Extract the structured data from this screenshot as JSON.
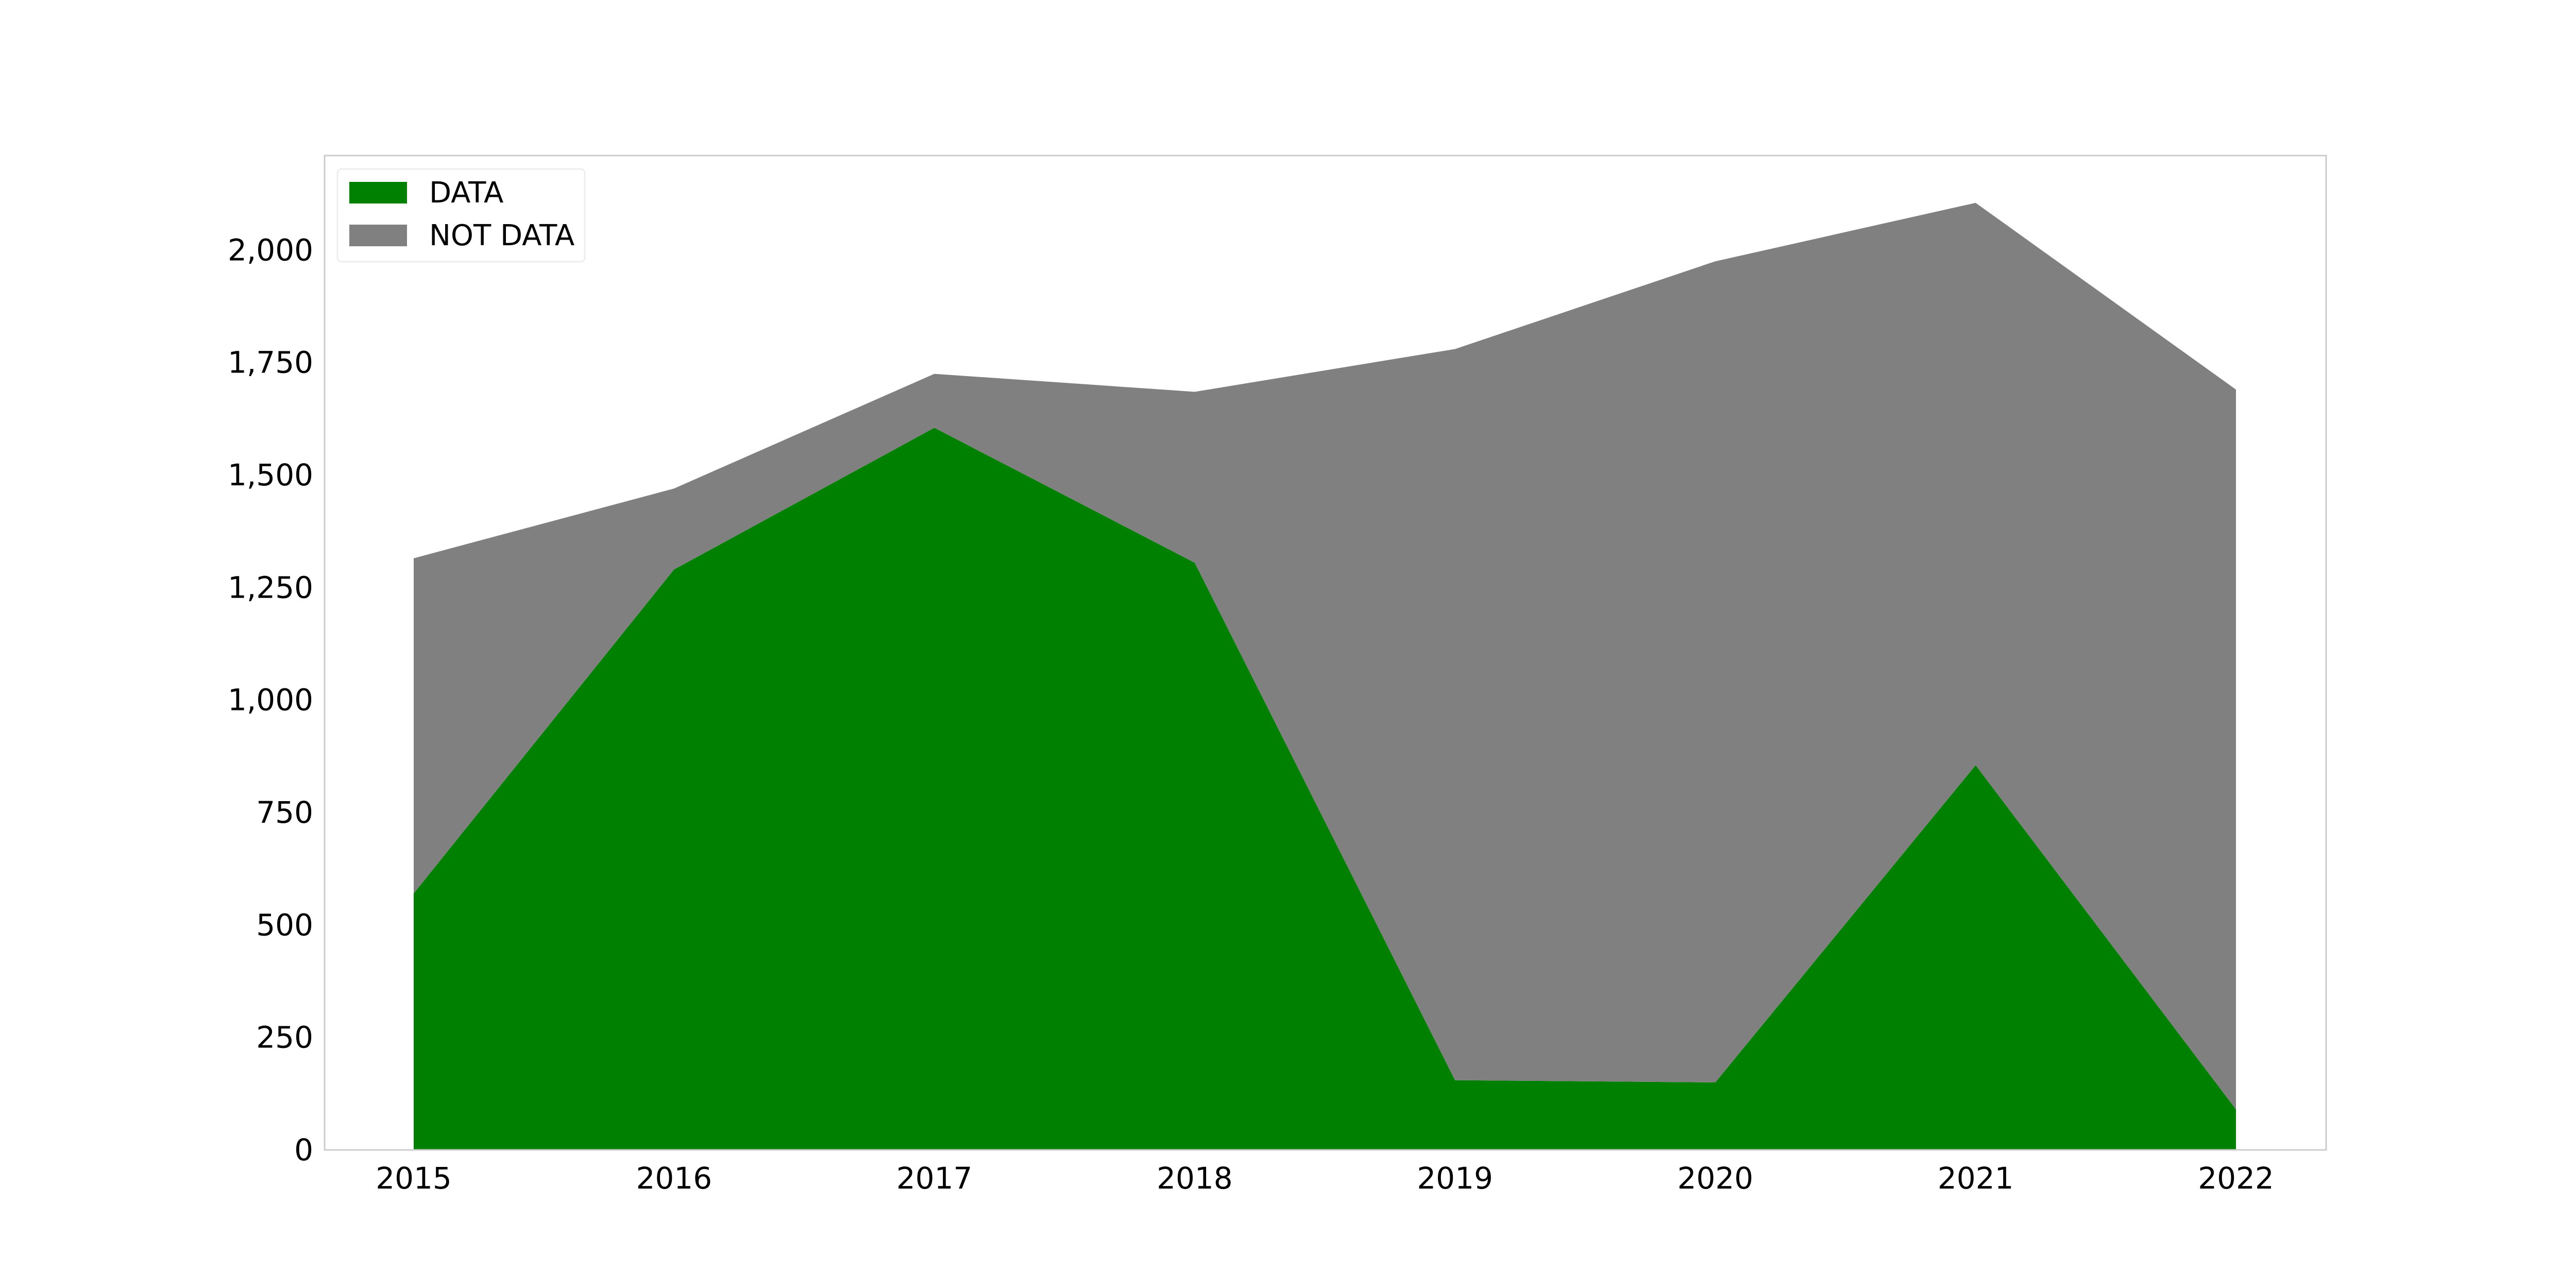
{
  "chart_data": {
    "type": "area",
    "stacked": true,
    "title": "",
    "xlabel": "",
    "ylabel": "",
    "x": [
      "2015",
      "2016",
      "2017",
      "2018",
      "2019",
      "2020",
      "2021",
      "2022"
    ],
    "series": [
      {
        "name": "DATA",
        "color": "#008000",
        "values": [
          570,
          1290,
          1605,
          1305,
          155,
          150,
          855,
          90
        ]
      },
      {
        "name": "NOT DATA",
        "color": "#808080",
        "values": [
          745,
          180,
          120,
          380,
          1625,
          1825,
          1250,
          1600
        ]
      }
    ],
    "ylim": [
      0,
      2210
    ],
    "yticks": [
      "0",
      "250",
      "500",
      "750",
      "1,000",
      "1,250",
      "1,500",
      "1,750",
      "2,000"
    ],
    "legend": {
      "position": "top-left"
    },
    "grid": false
  }
}
